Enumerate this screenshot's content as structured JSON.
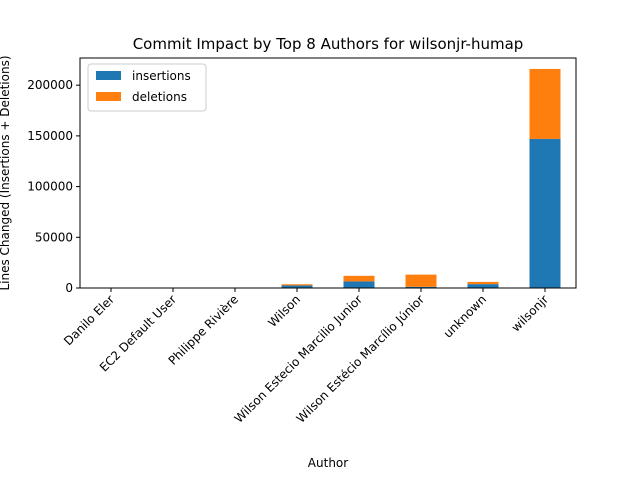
{
  "chart_data": {
    "type": "bar",
    "stacked": true,
    "title": "Commit Impact by Top 8 Authors for wilsonjr-humap",
    "xlabel": "Author",
    "ylabel": "Lines Changed (Insertions + Deletions)",
    "categories": [
      "Danilo Eler",
      "EC2 Default User",
      "Philippe Rivière",
      "Wilson",
      "Wilson Estecio Marcilio Junior",
      "Wilson Estécio Marcílio Júnior",
      "unknown",
      "wilsonjr"
    ],
    "series": [
      {
        "name": "insertions",
        "color": "#1f77b4",
        "values": [
          80,
          50,
          100,
          2500,
          6500,
          1200,
          3800,
          147000
        ]
      },
      {
        "name": "deletions",
        "color": "#ff7f0e",
        "values": [
          30,
          20,
          50,
          1200,
          5500,
          12000,
          2200,
          69000
        ]
      }
    ],
    "ylim": [
      0,
      226800
    ],
    "yticks": [
      0,
      50000,
      100000,
      150000,
      200000
    ],
    "ytick_labels": [
      "0",
      "50000",
      "100000",
      "150000",
      "200000"
    ],
    "grid": false,
    "legend_position": "top-left"
  }
}
